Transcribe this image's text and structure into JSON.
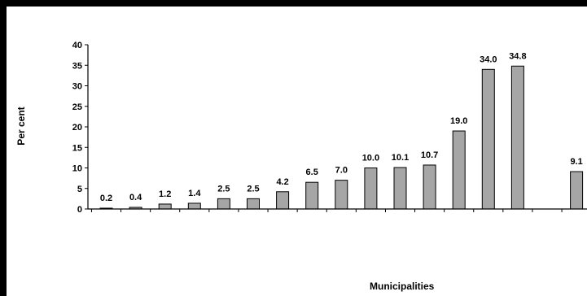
{
  "chart_data": {
    "type": "bar",
    "title": "",
    "xlabel": "Municipalities",
    "ylabel": "Per cent",
    "ylim": [
      0,
      40
    ],
    "yticks": [
      "0",
      "5",
      "10",
      "15",
      "20",
      "25",
      "30",
      "35",
      "40"
    ],
    "grid": false,
    "legend": "none",
    "bar_color": "#a6a6a6",
    "categories": [
      "",
      "",
      "",
      "",
      "",
      "",
      "",
      "",
      "",
      "",
      "",
      "",
      "",
      "",
      "",
      "",
      ""
    ],
    "values": [
      0.2,
      0.4,
      1.2,
      1.4,
      2.5,
      2.5,
      4.2,
      6.5,
      7.0,
      10.0,
      10.1,
      10.7,
      19.0,
      34.0,
      34.8,
      null,
      9.1
    ],
    "data_labels": [
      "0.2",
      "0.4",
      "1.2",
      "1.4",
      "2.5",
      "2.5",
      "4.2",
      "6.5",
      "7.0",
      "10.0",
      "10.1",
      "10.7",
      "19.0",
      "34.0",
      "34.8",
      "",
      "9.1"
    ]
  }
}
